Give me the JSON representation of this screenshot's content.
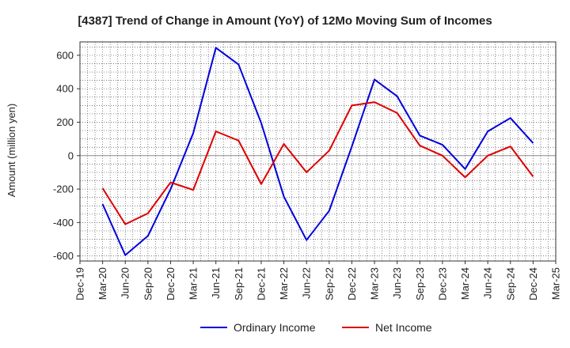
{
  "chart_data": {
    "type": "line",
    "title": "[4387]  Trend of Change in Amount (YoY) of 12Mo Moving Sum of Incomes",
    "xlabel": "",
    "ylabel": "Amount (million yen)",
    "ylim": [
      -630,
      680
    ],
    "yticks": [
      -600,
      -400,
      -200,
      0,
      200,
      400,
      600
    ],
    "ytick_labels": [
      "-600",
      "-400",
      "-200",
      "0",
      "200",
      "400",
      "600"
    ],
    "grid": true,
    "legend_position": "bottom-center",
    "categories": [
      "Dec-19",
      "Mar-20",
      "Jun-20",
      "Sep-20",
      "Dec-20",
      "Mar-21",
      "Jun-21",
      "Sep-21",
      "Dec-21",
      "Mar-22",
      "Jun-22",
      "Sep-22",
      "Dec-22",
      "Mar-23",
      "Jun-23",
      "Sep-23",
      "Dec-23",
      "Mar-24",
      "Jun-24",
      "Sep-24",
      "Dec-24",
      "Mar-25"
    ],
    "series": [
      {
        "name": "Ordinary Income",
        "color": "#0000dd",
        "values": [
          null,
          -290,
          -595,
          -480,
          -200,
          135,
          645,
          545,
          195,
          -245,
          -505,
          -330,
          55,
          455,
          355,
          120,
          65,
          -80,
          145,
          225,
          75,
          null
        ]
      },
      {
        "name": "Net Income",
        "color": "#dd0000",
        "values": [
          null,
          -195,
          -410,
          -345,
          -160,
          -205,
          145,
          90,
          -170,
          70,
          -100,
          30,
          300,
          320,
          255,
          60,
          0,
          -130,
          0,
          55,
          -125,
          null
        ]
      }
    ]
  }
}
